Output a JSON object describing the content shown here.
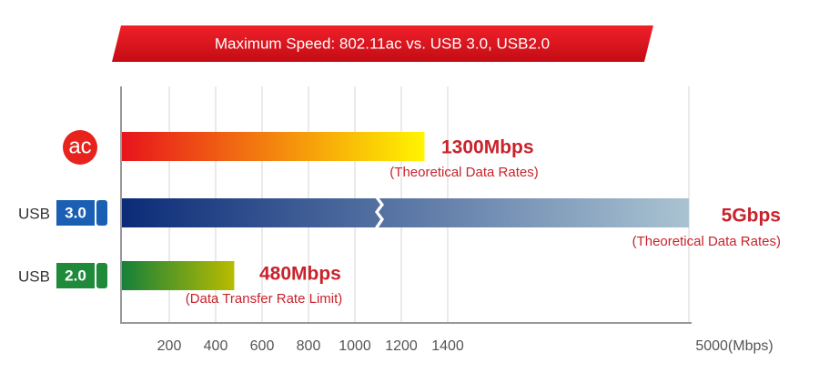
{
  "chart_data": {
    "type": "bar",
    "orientation": "horizontal",
    "title": "Maximum Speed: 802.11ac vs. USB 3.0, USB2.0",
    "categories": [
      [
        "ac"
      ],
      [
        "USB",
        "3.0"
      ],
      [
        "USB",
        "2.0"
      ]
    ],
    "values": [
      1300,
      5000,
      480
    ],
    "value_labels": [
      "1300Mbps",
      "5Gbps",
      "480Mbps"
    ],
    "annotations": [
      "(Theoretical Data Rates)",
      "(Theoretical Data Rates)",
      "(Data Transfer Rate Limit)"
    ],
    "colors": [
      [
        "#e8141c",
        "#fff500"
      ],
      [
        "#0b2b78",
        "#aac3d2"
      ],
      [
        "#16803a",
        "#b9bb00"
      ]
    ],
    "badge_colors": [
      "#e8231e",
      "#1a5fb4",
      "#1f8a3a"
    ],
    "xlim": [
      0,
      5000
    ],
    "axis_break": [
      1400,
      5000
    ],
    "xticks": [
      200,
      400,
      600,
      800,
      1000,
      1200,
      1400,
      {
        "value": 5000,
        "label": "5000(Mbps)"
      }
    ],
    "grid": true
  }
}
